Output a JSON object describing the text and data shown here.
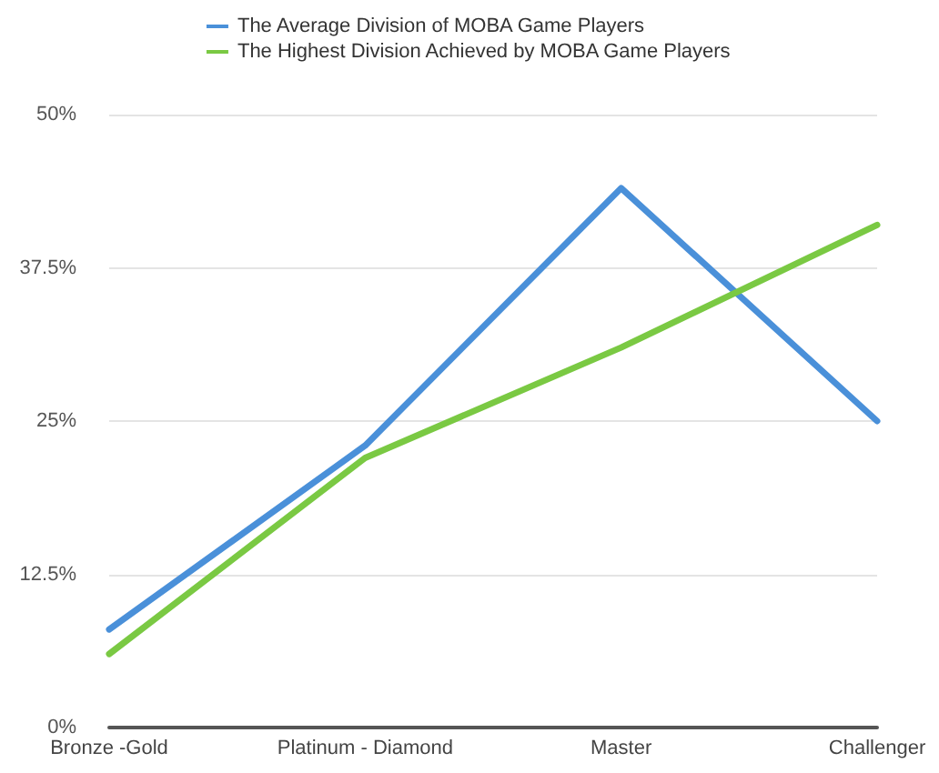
{
  "chart_data": {
    "type": "line",
    "categories": [
      "Bronze -Gold",
      "Platinum - Diamond",
      "Master",
      "Challenger"
    ],
    "series": [
      {
        "name": "The Average Division of MOBA Game Players",
        "color": "#4a90d9",
        "values": [
          8,
          23,
          44,
          25
        ]
      },
      {
        "name": "The Highest Division Achieved by MOBA Game Players",
        "color": "#7ac943",
        "values": [
          6,
          22,
          31,
          41
        ]
      }
    ],
    "ylim": [
      0,
      50
    ],
    "yticks": [
      {
        "value": 0,
        "label": "0%"
      },
      {
        "value": 12.5,
        "label": "12.5%"
      },
      {
        "value": 25,
        "label": "25%"
      },
      {
        "value": 37.5,
        "label": "37.5%"
      },
      {
        "value": 50,
        "label": "50%"
      }
    ],
    "grid": "y",
    "legend": "top",
    "marker": "none",
    "line_style": "solid"
  }
}
